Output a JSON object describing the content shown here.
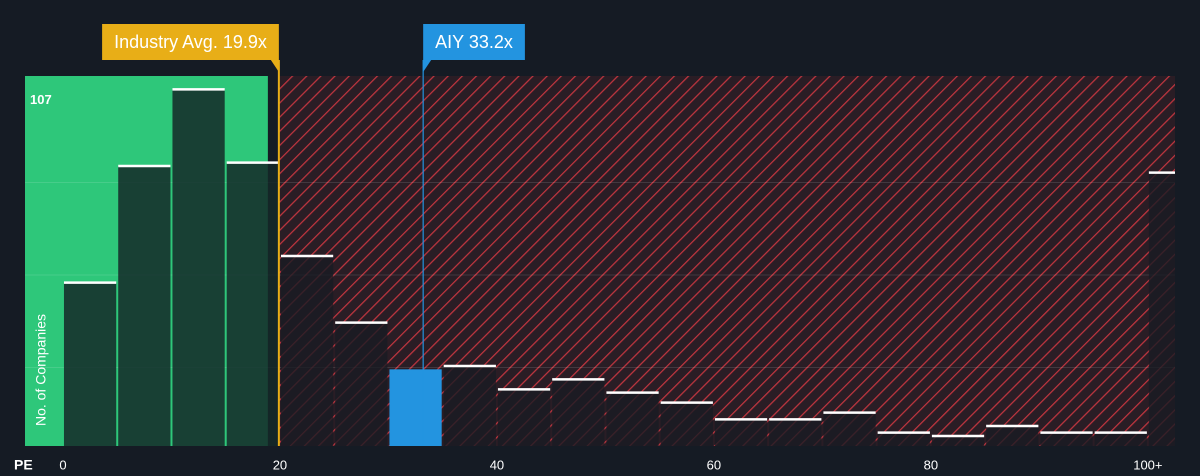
{
  "chart_data": {
    "type": "histogram",
    "x_label": "PE",
    "y_label": "No. of Companies",
    "bins": [
      0,
      5,
      10,
      15,
      20,
      25,
      30,
      35,
      40,
      45,
      50,
      55,
      60,
      65,
      70,
      75,
      80,
      85,
      90,
      95,
      100,
      105
    ],
    "values": [
      49,
      84,
      107,
      85,
      57,
      37,
      23,
      24,
      17,
      20,
      16,
      13,
      8,
      8,
      10,
      4,
      3,
      6,
      4,
      4,
      82
    ],
    "xlim": [
      -3.5,
      102.5
    ],
    "ylim": [
      0,
      111
    ],
    "xticks": [
      0,
      20,
      40,
      60,
      80,
      {
        "value": 100,
        "label": "100+"
      }
    ],
    "yticks": [
      107
    ],
    "annotations": [
      {
        "label": "Industry Avg. 19.9x",
        "value": 19.9,
        "color": "#e8ae17"
      },
      {
        "label": "AIY 33.2x",
        "value": 33.2,
        "color": "#2394e0"
      }
    ]
  }
}
